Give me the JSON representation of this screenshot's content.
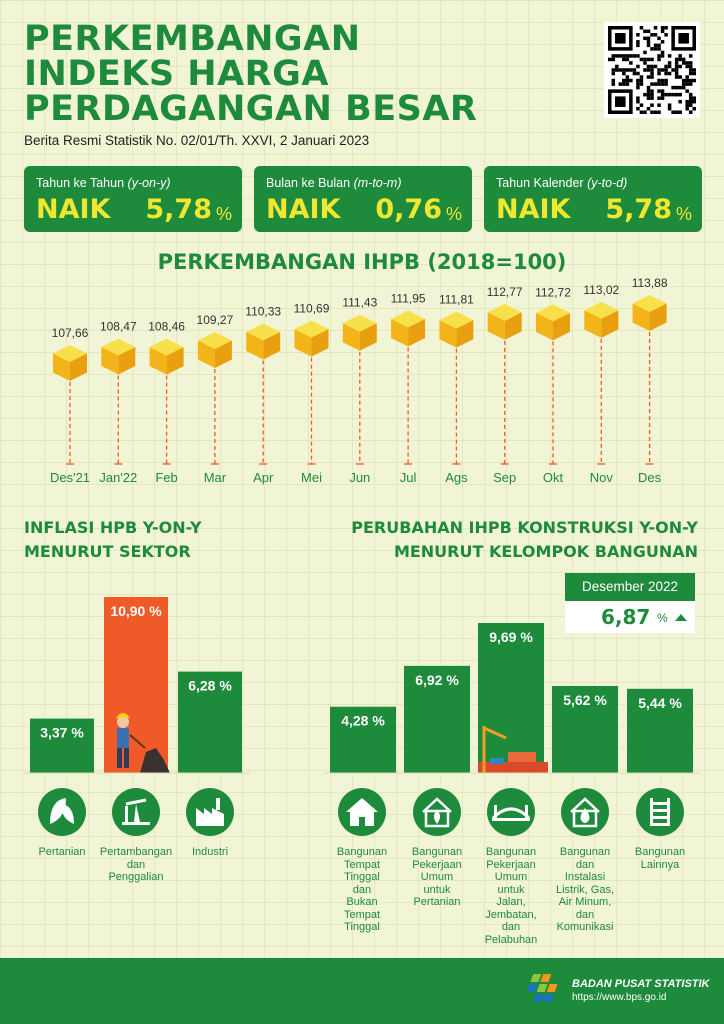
{
  "title_lines": [
    "PERKEMBANGAN",
    "INDEKS HARGA",
    "PERDAGANGAN BESAR"
  ],
  "subtitle": "Berita Resmi Statistik No. 02/01/Th. XXVI, 2 Januari 2023",
  "summary": [
    {
      "label": "Tahun ke Tahun",
      "label_italic": "(y-on-y)",
      "status": "NAIK",
      "value": "5,78",
      "unit": "%"
    },
    {
      "label": "Bulan ke Bulan",
      "label_italic": "(m-to-m)",
      "status": "NAIK",
      "value": "0,76",
      "unit": "%"
    },
    {
      "label": "Tahun Kalender",
      "label_italic": "(y-to-d)",
      "status": "NAIK",
      "value": "5,78",
      "unit": "%"
    }
  ],
  "colors": {
    "green": "#1e8a3c",
    "yellow": "#f0e830",
    "orange": "#f05a28",
    "box": "#f5c518",
    "background": "#f2f4d6"
  },
  "chart_data": [
    {
      "type": "line",
      "title": "PERKEMBANGAN IHPB (2018=100)",
      "categories": [
        "Des'21",
        "Jan'22",
        "Feb",
        "Mar",
        "Apr",
        "Mei",
        "Jun",
        "Jul",
        "Ags",
        "Sep",
        "Okt",
        "Nov",
        "Des"
      ],
      "values": [
        107.66,
        108.47,
        108.46,
        109.27,
        110.33,
        110.69,
        111.43,
        111.95,
        111.81,
        112.77,
        112.72,
        113.02,
        113.88
      ],
      "value_labels": [
        "107,66",
        "108,47",
        "108,46",
        "109,27",
        "110,33",
        "110,69",
        "111,43",
        "111,95",
        "111,81",
        "112,77",
        "112,72",
        "113,02",
        "113,88"
      ],
      "marker": "box-icon"
    },
    {
      "type": "bar",
      "title_lines": [
        "INFLASI HPB Y-ON-Y",
        "MENURUT SEKTOR"
      ],
      "categories": [
        "Pertanian",
        "Pertambangan dan Penggalian",
        "Industri"
      ],
      "category_label_lines": [
        [
          "Pertanian"
        ],
        [
          "Pertambangan",
          "dan",
          "Penggalian"
        ],
        [
          "Industri"
        ]
      ],
      "values": [
        3.37,
        10.9,
        6.28
      ],
      "value_labels": [
        "3,37",
        "10,90",
        "6,28"
      ],
      "unit": "%",
      "highlight_index": 1,
      "icons": [
        "leaf-icon",
        "oil-pump-icon",
        "factory-icon"
      ]
    },
    {
      "type": "bar",
      "title_lines": [
        "PERUBAHAN IHPB KONSTRUKSI Y-ON-Y",
        "MENURUT KELOMPOK BANGUNAN"
      ],
      "categories": [
        "Bangunan Tempat Tinggal dan Bukan Tempat Tinggal",
        "Bangunan Pekerjaan Umum untuk Pertanian",
        "Bangunan Pekerjaan Umum untuk Jalan, Jembatan, dan Pelabuhan",
        "Bangunan dan Instalasi Listrik, Gas, Air Minum, dan Komunikasi",
        "Bangunan Lainnya"
      ],
      "category_label_lines": [
        [
          "Bangunan",
          "Tempat",
          "Tinggal",
          "dan",
          "Bukan",
          "Tempat",
          "Tinggal"
        ],
        [
          "Bangunan",
          "Pekerjaan",
          "Umum",
          "untuk",
          "Pertanian"
        ],
        [
          "Bangunan",
          "Pekerjaan",
          "Umum",
          "untuk",
          "Jalan,",
          "Jembatan,",
          "dan",
          "Pelabuhan"
        ],
        [
          "Bangunan",
          "dan",
          "Instalasi",
          "Listrik, Gas,",
          "Air Minum,",
          "dan",
          "Komunikasi"
        ],
        [
          "Bangunan",
          "Lainnya"
        ]
      ],
      "values": [
        4.28,
        6.92,
        9.69,
        5.62,
        5.44
      ],
      "value_labels": [
        "4,28",
        "6,92",
        "9,69",
        "5,62",
        "5,44"
      ],
      "unit": "%",
      "icons": [
        "house-icon",
        "plant-house-icon",
        "bridge-icon",
        "water-drop-house-icon",
        "ladder-icon"
      ]
    }
  ],
  "december_box": {
    "label": "Desember 2022",
    "value": "6,87",
    "unit": "%",
    "trend": "up-arrow-icon"
  },
  "footer": {
    "org": "BADAN PUSAT STATISTIK",
    "url": "https://www.bps.go.id"
  }
}
